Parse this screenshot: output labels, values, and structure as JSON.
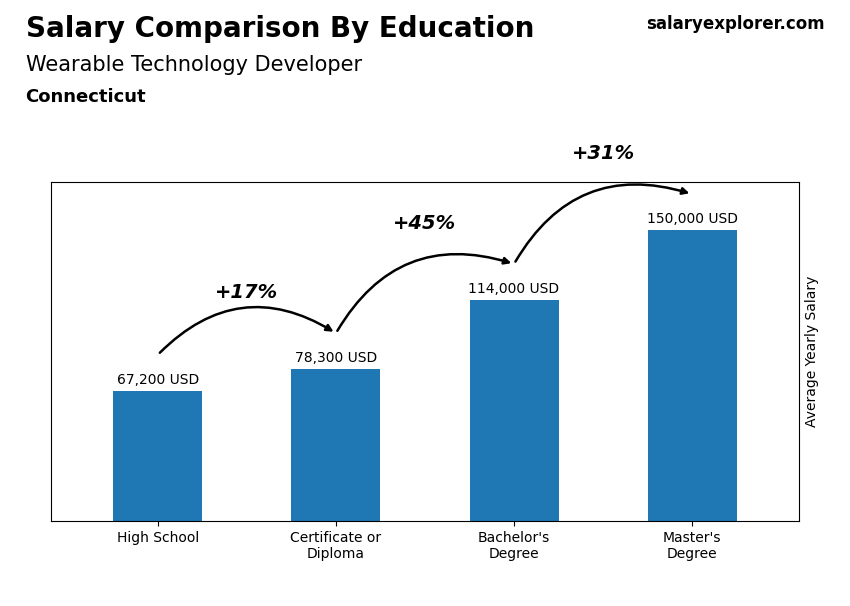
{
  "chart_data": {
    "type": "bar",
    "title": "Salary Comparison By Education",
    "subtitle": "Wearable Technology Developer",
    "categories": [
      "High School",
      "Certificate or\nDiploma",
      "Bachelor's\nDegree",
      "Master's\nDegree"
    ],
    "values": [
      67200,
      78300,
      114000,
      150000
    ],
    "value_labels": [
      "67,200 USD",
      "78,300 USD",
      "114,000 USD",
      "150,000 USD"
    ],
    "data_labels": true,
    "y_label": "Average Yearly Salary",
    "ylim": [
      0,
      175000
    ],
    "tick_labels": "x",
    "grid": false,
    "annotations": [
      {
        "text": "Connecticut"
      },
      {
        "text": "salaryexplorer.com"
      },
      {
        "text": "+17%",
        "from": "High School",
        "to": "Certificate or\nDiploma"
      },
      {
        "text": "+45%",
        "from": "Certificate or\nDiploma",
        "to": "Bachelor's\nDegree"
      },
      {
        "text": "+31%",
        "from": "Bachelor's\nDegree",
        "to": "Master's\nDegree"
      }
    ]
  }
}
